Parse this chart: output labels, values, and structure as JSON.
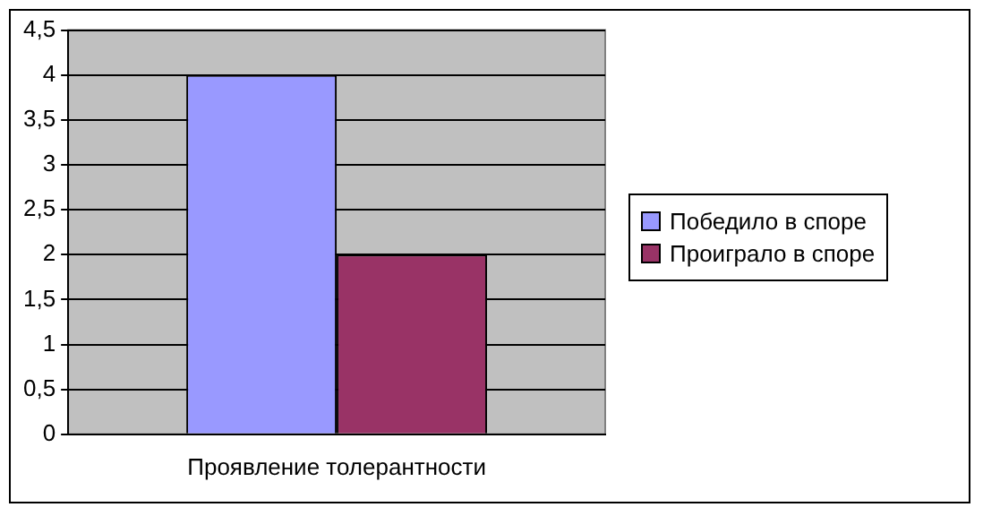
{
  "chart_data": {
    "type": "bar",
    "categories": [
      "Проявление толерантности"
    ],
    "series": [
      {
        "name": "Победило в споре",
        "color": "#9999ff",
        "values": [
          4
        ]
      },
      {
        "name": "Проиграло в споре",
        "color": "#993366",
        "values": [
          2
        ]
      }
    ],
    "ylim": [
      0,
      4.5
    ],
    "yticks": [
      0,
      {
        "value": 0.5,
        "label": "0,5"
      },
      1,
      {
        "value": 1.5,
        "label": "1,5"
      },
      2,
      {
        "value": 2.5,
        "label": "2,5"
      },
      3,
      {
        "value": 3.5,
        "label": "3,5"
      },
      4,
      {
        "value": 4.5,
        "label": "4,5"
      }
    ],
    "grid": "y",
    "legend": "right"
  }
}
